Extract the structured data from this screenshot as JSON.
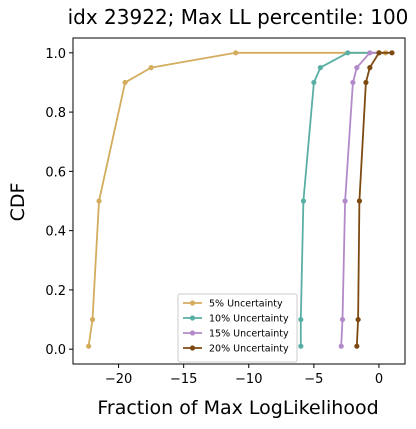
{
  "chart_data": {
    "type": "line",
    "title": "idx 23922; Max LL percentile: 100",
    "xlabel": "Fraction of Max LogLikelihood",
    "ylabel": "CDF",
    "xlim": [
      -23.5,
      2.0
    ],
    "ylim": [
      -0.05,
      1.05
    ],
    "x_ticks": [
      -20,
      -15,
      -10,
      -5,
      0
    ],
    "x_tick_labels": [
      "−20",
      "−15",
      "−10",
      "−5",
      "0"
    ],
    "y_ticks": [
      0.0,
      0.2,
      0.4,
      0.6,
      0.8,
      1.0
    ],
    "y_tick_labels": [
      "0.0",
      "0.2",
      "0.4",
      "0.6",
      "0.8",
      "1.0"
    ],
    "grid": false,
    "legend_position": "lower-right",
    "series": [
      {
        "name": "5% Uncertainty",
        "color": "#d4ac5e",
        "x": [
          -22.3,
          -22.0,
          -21.5,
          -19.5,
          -17.5,
          -11.0,
          0.5
        ],
        "y": [
          0.01,
          0.1,
          0.5,
          0.9,
          0.95,
          1.0,
          1.0
        ]
      },
      {
        "name": "10% Uncertainty",
        "color": "#5aafa5",
        "x": [
          -6.0,
          -6.0,
          -5.8,
          -5.0,
          -4.5,
          -2.4,
          0.0
        ],
        "y": [
          0.01,
          0.1,
          0.5,
          0.9,
          0.95,
          1.0,
          1.0
        ]
      },
      {
        "name": "15% Uncertainty",
        "color": "#b38ac9",
        "x": [
          -2.9,
          -2.8,
          -2.6,
          -2.0,
          -1.7,
          -0.7,
          0.0
        ],
        "y": [
          0.01,
          0.1,
          0.5,
          0.9,
          0.95,
          1.0,
          1.0
        ]
      },
      {
        "name": "20% Uncertainty",
        "color": "#7d4a12",
        "x": [
          -1.7,
          -1.6,
          -1.5,
          -1.0,
          -0.7,
          0.0,
          1.0
        ],
        "y": [
          0.01,
          0.1,
          0.5,
          0.9,
          0.95,
          1.0,
          1.0
        ]
      }
    ]
  }
}
